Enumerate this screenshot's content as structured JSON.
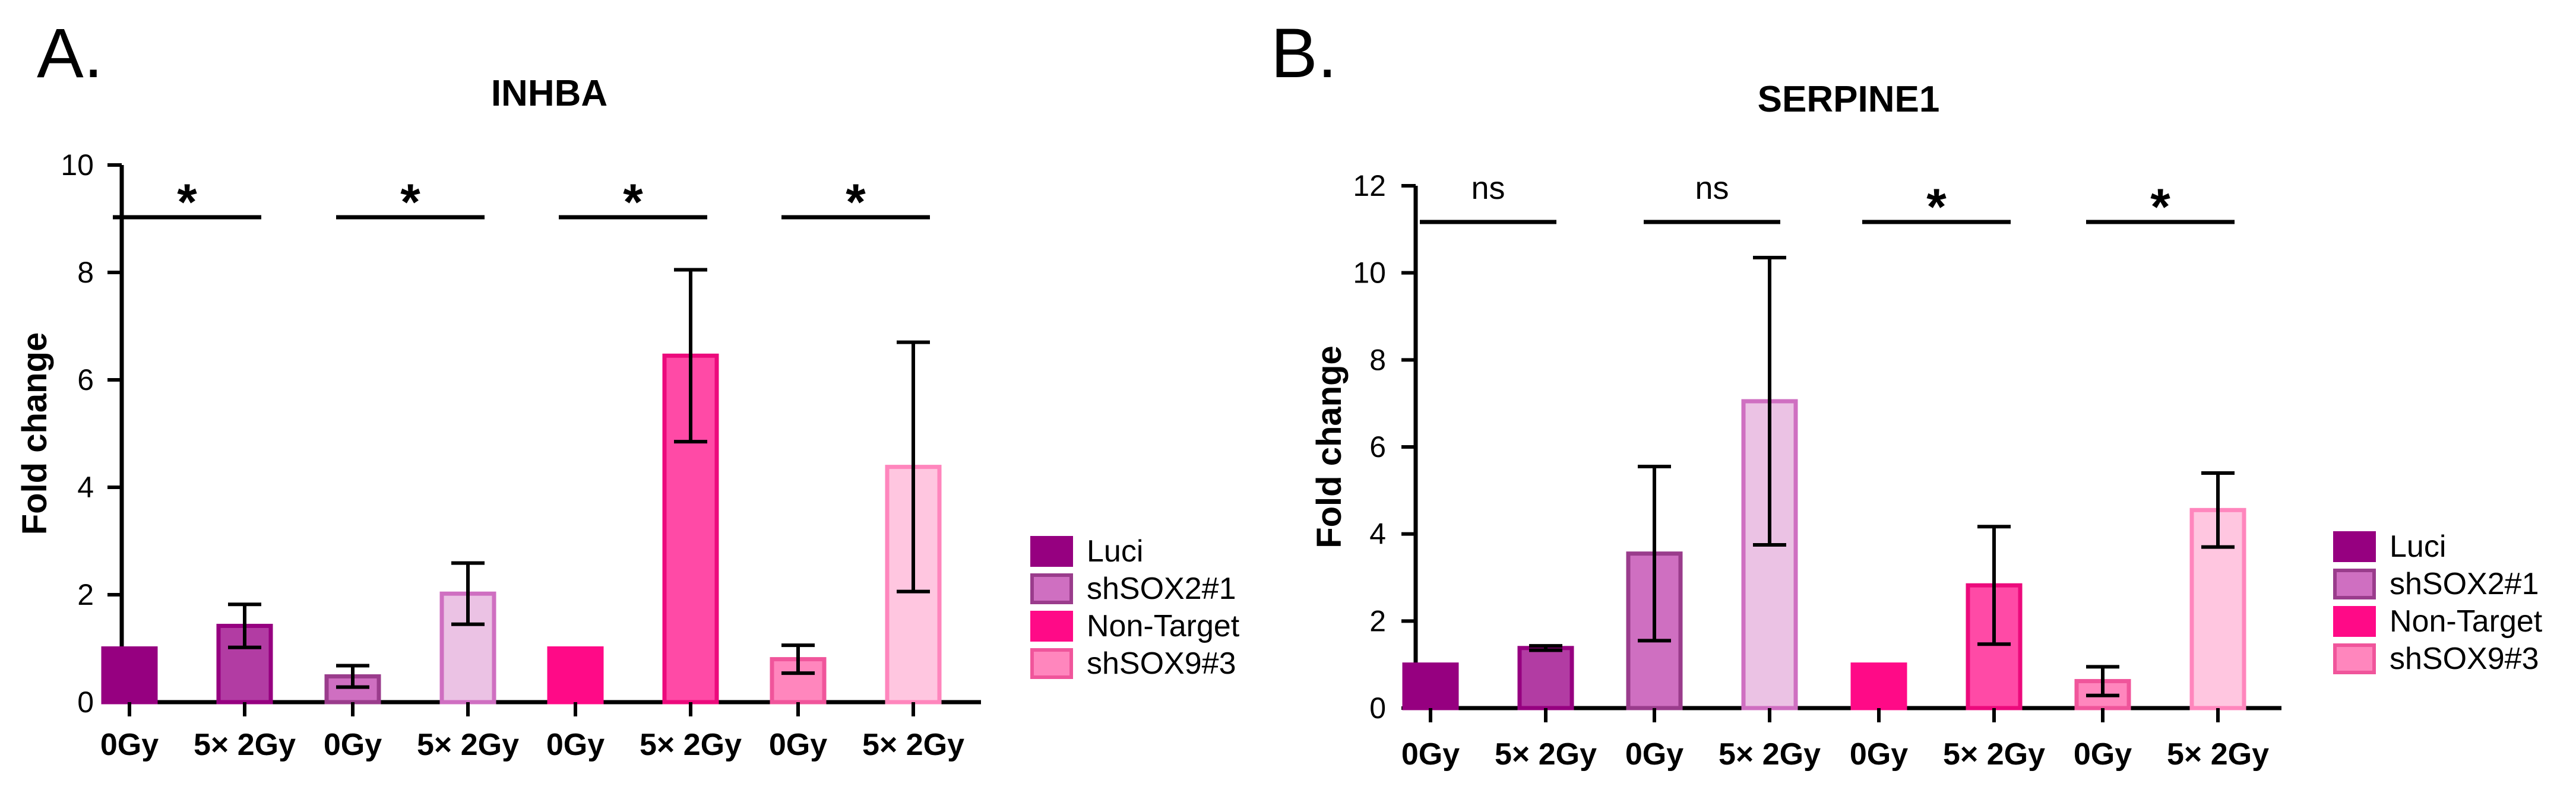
{
  "colors": {
    "Luci": "#960080",
    "shSOX2#1": "#cf6fc1",
    "Non-Target": "#ff0a87",
    "shSOX9#3": "#ff86bd",
    "Luci_light": "#b23ca3",
    "shSOX2#1_light": "#ebc2e4",
    "Non-Target_light": "#ff4aa6",
    "shSOX9#3_light": "#ffc6e0"
  },
  "legend": {
    "items": [
      {
        "label": "Luci",
        "color": "#960080",
        "edge": "#960080"
      },
      {
        "label": "shSOX2#1",
        "color": "#cf6fc1",
        "edge": "#9a3c8c"
      },
      {
        "label": "Non-Target",
        "color": "#ff0a87",
        "edge": "#ff0a87"
      },
      {
        "label": "shSOX9#3",
        "color": "#ff86bd",
        "edge": "#f0559b"
      }
    ]
  },
  "chart_data": [
    {
      "type": "bar",
      "panel": "A.",
      "title": "INHBA",
      "xlabel": "",
      "ylabel": "Fold change",
      "ylim": [
        0,
        10
      ],
      "yticks": [
        0,
        2,
        4,
        6,
        8,
        10
      ],
      "groups": [
        "Luci",
        "shSOX2#1",
        "Non-Target",
        "shSOX9#3"
      ],
      "categories": [
        "0Gy",
        "5× 2Gy"
      ],
      "series": [
        {
          "name": "Luci",
          "values": [
            1.0,
            1.42
          ],
          "errors": [
            0,
            0.4
          ],
          "fill": [
            "#960080",
            "#b23ca3"
          ],
          "edge": [
            "#960080",
            "#960080"
          ]
        },
        {
          "name": "shSOX2#1",
          "values": [
            0.48,
            2.02
          ],
          "errors": [
            0.2,
            0.57
          ],
          "fill": [
            "#cf6fc1",
            "#ebc2e4"
          ],
          "edge": [
            "#9a3c8c",
            "#cf6fc1"
          ]
        },
        {
          "name": "Non-Target",
          "values": [
            1.0,
            6.45
          ],
          "errors": [
            0,
            1.6
          ],
          "fill": [
            "#ff0a87",
            "#ff4aa6"
          ],
          "edge": [
            "#ff0a87",
            "#ec0a7c"
          ]
        },
        {
          "name": "shSOX9#3",
          "values": [
            0.8,
            4.38
          ],
          "errors": [
            0.26,
            2.32
          ],
          "fill": [
            "#ff86bd",
            "#ffc6e0"
          ],
          "edge": [
            "#f0559b",
            "#ff86bd"
          ]
        }
      ],
      "significance": [
        "*",
        "*",
        "*",
        "*"
      ]
    },
    {
      "type": "bar",
      "panel": "B.",
      "title": "SERPINE1",
      "xlabel": "",
      "ylabel": "Fold change",
      "ylim": [
        0,
        12
      ],
      "yticks": [
        0,
        2,
        4,
        6,
        8,
        10,
        12
      ],
      "groups": [
        "Luci",
        "shSOX2#1",
        "Non-Target",
        "shSOX9#3"
      ],
      "categories": [
        "0Gy",
        "5× 2Gy"
      ],
      "series": [
        {
          "name": "Luci",
          "values": [
            1.0,
            1.38
          ],
          "errors": [
            0,
            0.05
          ],
          "fill": [
            "#960080",
            "#b23ca3"
          ],
          "edge": [
            "#960080",
            "#960080"
          ]
        },
        {
          "name": "shSOX2#1",
          "values": [
            3.55,
            7.05
          ],
          "errors": [
            2.0,
            3.3
          ],
          "fill": [
            "#cf6fc1",
            "#ebc2e4"
          ],
          "edge": [
            "#9a3c8c",
            "#cf6fc1"
          ]
        },
        {
          "name": "Non-Target",
          "values": [
            1.0,
            2.82
          ],
          "errors": [
            0,
            1.35
          ],
          "fill": [
            "#ff0a87",
            "#ff4aa6"
          ],
          "edge": [
            "#ff0a87",
            "#ec0a7c"
          ]
        },
        {
          "name": "shSOX9#3",
          "values": [
            0.62,
            4.55
          ],
          "errors": [
            0.33,
            0.85
          ],
          "fill": [
            "#ff86bd",
            "#ffc6e0"
          ],
          "edge": [
            "#f0559b",
            "#ff86bd"
          ]
        }
      ],
      "significance": [
        "ns",
        "ns",
        "*",
        "*"
      ]
    }
  ]
}
